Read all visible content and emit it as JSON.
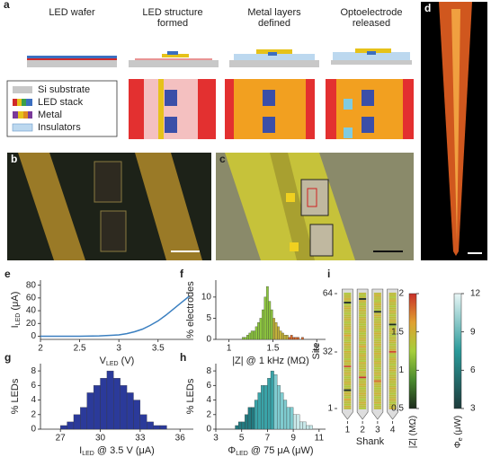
{
  "panel_labels": {
    "a": "a",
    "b": "b",
    "c": "c",
    "d": "d"
  },
  "steps": [
    [
      "LED wafer"
    ],
    [
      "LED structure",
      "formed"
    ],
    [
      "Metal layers",
      "defined"
    ],
    [
      "Optoelectrode",
      "released"
    ]
  ],
  "legend": [
    "Si substrate",
    "LED stack",
    "Metal",
    "Insulators"
  ],
  "chart_data": [
    {
      "type": "line",
      "panel": "e",
      "x": [
        2,
        2.25,
        2.5,
        2.75,
        3,
        3.1,
        3.2,
        3.3,
        3.4,
        3.5,
        3.6,
        3.7,
        3.8,
        3.9
      ],
      "series": [
        {
          "color": "#3a7fc0",
          "values": [
            0,
            0,
            0,
            0.5,
            2,
            4,
            7,
            11,
            17,
            24,
            33,
            43,
            53,
            63
          ]
        }
      ],
      "xlim": [
        2,
        3.95
      ],
      "ylim": [
        -5,
        88
      ],
      "xticks": [
        2,
        2.5,
        3,
        3.5
      ],
      "yticks": [
        0,
        20,
        40,
        60,
        80
      ],
      "xlabel": {
        "text": "V",
        "sub": "LED",
        "tail": " (V)"
      },
      "ylabel": {
        "text": "I",
        "sub": "LED",
        "tail": " (μA)"
      }
    },
    {
      "type": "histogram",
      "panel": "f",
      "bins": [
        1.15,
        1.175,
        1.2,
        1.225,
        1.25,
        1.275,
        1.3,
        1.325,
        1.35,
        1.375,
        1.4,
        1.425,
        1.45,
        1.475,
        1.5,
        1.525,
        1.55,
        1.575,
        1.6,
        1.625,
        1.65,
        1.675,
        1.7,
        1.725,
        1.75,
        1.775,
        1.8,
        1.825,
        1.85
      ],
      "values": [
        0.5,
        0.5,
        1,
        1.5,
        2,
        2,
        3,
        4,
        5,
        7,
        10,
        12.5,
        9,
        7,
        5,
        4,
        3,
        2,
        1.5,
        1,
        1,
        0.5,
        1,
        0.5,
        0.5,
        0.5,
        0,
        0.5
      ],
      "colors": [
        "#8dc63f",
        "#8dc63f",
        "#8dc63f",
        "#8dc63f",
        "#8dc63f",
        "#8dc63f",
        "#8dc63f",
        "#8dc63f",
        "#8dc63f",
        "#8dc63f",
        "#8dc63f",
        "#8dc63f",
        "#8dc63f",
        "#8dc63f",
        "#c5b33a",
        "#c5b33a",
        "#c5b33a",
        "#c5b33a",
        "#c5b33a",
        "#c5b33a",
        "#c5b33a",
        "#d9692b",
        "#d9692b",
        "#d9692b",
        "#d9692b",
        "#d9692b",
        "#d9692b",
        "#d9692b"
      ],
      "xlim": [
        0.85,
        2.1
      ],
      "ylim": [
        0,
        14
      ],
      "xticks": [
        1,
        1.5,
        2
      ],
      "yticks": [
        0,
        5,
        10
      ],
      "xlabel": {
        "text": "|Z| @ 1 kHz (MΩ)"
      },
      "ylabel": {
        "text": "% electrodes"
      }
    },
    {
      "type": "histogram",
      "panel": "g",
      "bins": [
        27,
        27.5,
        28,
        28.5,
        29,
        29.5,
        30,
        30.5,
        31,
        31.5,
        32,
        32.5,
        33,
        33.5,
        34,
        34.5,
        35
      ],
      "values": [
        0.5,
        1,
        2,
        3,
        5,
        6,
        7,
        8,
        7,
        6,
        5,
        4,
        2,
        1,
        0.5,
        0.5
      ],
      "colors": [
        "#2b3a9a",
        "#2b3a9a",
        "#2b3a9a",
        "#2b3a9a",
        "#2b3a9a",
        "#2b3a9a",
        "#2b3a9a",
        "#2b3a9a",
        "#2b3a9a",
        "#2b3a9a",
        "#2b3a9a",
        "#2b3a9a",
        "#2b3a9a",
        "#2b3a9a",
        "#2b3a9a",
        "#2b3a9a"
      ],
      "xlim": [
        25.5,
        37
      ],
      "ylim": [
        0,
        9
      ],
      "xticks": [
        27,
        30,
        33,
        36
      ],
      "yticks": [
        0,
        2,
        4,
        6,
        8
      ],
      "xlabel": {
        "text": "I",
        "sub": "LED",
        "tail": " @ 3.5 V (μA)"
      },
      "ylabel": {
        "text": "% LEDs"
      }
    },
    {
      "type": "histogram",
      "panel": "h",
      "bins": [
        4.5,
        4.75,
        5,
        5.25,
        5.5,
        5.75,
        6,
        6.25,
        6.5,
        6.75,
        7,
        7.25,
        7.5,
        7.75,
        8,
        8.25,
        8.5,
        8.75,
        9,
        9.25,
        9.5,
        9.75,
        10,
        10.25,
        10.5
      ],
      "values": [
        0.5,
        1,
        1,
        2,
        3,
        3,
        4,
        5,
        6,
        6,
        7,
        8,
        7.5,
        6,
        5,
        4,
        3,
        3,
        2,
        2,
        1,
        1,
        0.5,
        0.5
      ],
      "colors": [
        "#237a80",
        "#237a80",
        "#237a80",
        "#237a80",
        "#237a80",
        "#237a80",
        "#3aa3a8",
        "#3aa3a8",
        "#3aa3a8",
        "#3aa3a8",
        "#3aa3a8",
        "#3aa3a8",
        "#7fcbcf",
        "#7fcbcf",
        "#7fcbcf",
        "#7fcbcf",
        "#7fcbcf",
        "#7fcbcf",
        "#c9e9ea",
        "#c9e9ea",
        "#c9e9ea",
        "#c9e9ea",
        "#c9e9ea",
        "#c9e9ea"
      ],
      "xlim": [
        3,
        11.5
      ],
      "ylim": [
        0,
        9
      ],
      "xticks": [
        3,
        5,
        7,
        9,
        11
      ],
      "yticks": [
        0,
        2,
        4,
        6,
        8
      ],
      "xlabel": {
        "text": "Φ",
        "sub": "LED",
        "tail": " @ 75 μA (μW)"
      },
      "ylabel": {
        "text": "% LEDs"
      }
    },
    {
      "type": "heatmap",
      "panel": "i",
      "xlabel": "Shank",
      "ylabel": "Site",
      "xlim": [
        0.5,
        4.5
      ],
      "xticks": [
        1,
        2,
        3,
        4
      ],
      "ylim": [
        1,
        64
      ],
      "yticks": [
        1,
        32,
        64
      ],
      "z": [
        [
          1.4,
          1.5,
          1.3,
          1.4,
          1.4,
          1.6,
          1.3,
          1.4,
          1.5,
          1.4,
          0.5,
          1.4,
          1.3,
          1.4,
          1.5,
          1.4,
          1.4,
          1.3,
          1.4,
          1.5,
          1.4,
          1.4,
          1.3,
          1.9,
          1.4,
          1.4,
          1.5,
          1.3,
          1.4,
          1.4,
          1.4,
          1.5,
          1.3,
          1.4,
          1.4,
          1.5,
          1.4,
          1.3,
          1.4,
          1.4,
          1.6,
          1.4,
          1.3,
          1.4,
          1.5,
          1.4,
          1.4,
          1.3,
          1.4,
          1.5,
          1.4,
          1.4,
          1.3,
          1.4,
          1.4,
          1.5,
          1.4,
          1.3,
          0.5,
          1.4,
          1.5,
          1.4,
          1.4,
          1.3
        ],
        [
          1.3,
          1.4,
          1.4,
          1.5,
          1.4,
          1.3,
          1.4,
          1.4,
          1.5,
          1.4,
          1.4,
          1.3,
          1.4,
          1.5,
          1.4,
          1.4,
          1.3,
          2,
          1.4,
          1.4,
          1.5,
          1.3,
          1.4,
          1.4,
          1.4,
          1.5,
          1.3,
          1.4,
          1.4,
          1.5,
          1.4,
          1.3,
          1.4,
          1.4,
          1.6,
          1.4,
          1.3,
          1.4,
          1.5,
          1.4,
          1.4,
          1.3,
          1.4,
          1.5,
          1.4,
          1.4,
          1.3,
          1.4,
          1.4,
          1.5,
          1.4,
          1.3,
          1.4,
          1.4,
          1.5,
          1.4,
          1.4,
          1.3,
          1.4,
          1.5,
          0.5,
          1.4,
          1.3,
          1.4
        ],
        [
          1.4,
          1.4,
          1.3,
          1.5,
          1.4,
          1.4,
          1.3,
          1.4,
          1.5,
          1.4,
          1.4,
          1.3,
          1.4,
          1.4,
          1.5,
          1.8,
          1.4,
          1.3,
          1.4,
          1.5,
          1.4,
          1.4,
          1.3,
          1.4,
          1.4,
          1.5,
          1.4,
          1.3,
          1.4,
          1.4,
          1.5,
          1.4,
          1.4,
          1.3,
          1.4,
          1.5,
          1.4,
          1.4,
          1.3,
          1.4,
          1.4,
          1.5,
          1.4,
          1.3,
          1.4,
          1.4,
          1.5,
          1.4,
          1.4,
          1.3,
          1.4,
          1.5,
          1.4,
          0.5,
          1.3,
          1.4,
          1.4,
          1.5,
          1.4,
          1.3,
          1.4,
          1.4,
          1.5,
          1.4
        ],
        [
          1.5,
          1.4,
          1.4,
          1.3,
          1.4,
          1.5,
          1.4,
          1.4,
          1.3,
          1.4,
          1.4,
          1.5,
          1.4,
          1.3,
          1.4,
          1.4,
          1.5,
          1.4,
          1.4,
          1.3,
          1.4,
          1.5,
          1.4,
          1.4,
          1.3,
          1.4,
          1.4,
          1.5,
          1.4,
          1.3,
          1.4,
          1.9,
          1.5,
          1.4,
          1.4,
          1.3,
          1.4,
          1.5,
          1.4,
          1.4,
          1.3,
          1.4,
          1.4,
          1.5,
          1.4,
          1.3,
          0.5,
          1.4,
          1.5,
          1.4,
          1.4,
          1.3,
          1.4,
          1.5,
          1.4,
          1.4,
          1.3,
          1.4,
          1.4,
          1.5,
          1.4,
          1.3,
          1.4,
          1.4
        ]
      ],
      "colorbars": [
        {
          "label": {
            "text": "|Z| (MΩ)"
          },
          "lim": [
            0.5,
            2
          ],
          "ticks": [
            0.5,
            1,
            1.5,
            2
          ],
          "colors": [
            "#1c2b1c",
            "#4a8a2e",
            "#a6cf3c",
            "#e0a030",
            "#c8302a"
          ]
        },
        {
          "label": {
            "text": "Φ",
            "sub": "e",
            "tail": " (μW)"
          },
          "lim": [
            3,
            12
          ],
          "ticks": [
            3,
            6,
            9,
            12
          ],
          "colors": [
            "#1d3b3b",
            "#2a9a9a",
            "#e8f6f6"
          ]
        }
      ]
    }
  ]
}
